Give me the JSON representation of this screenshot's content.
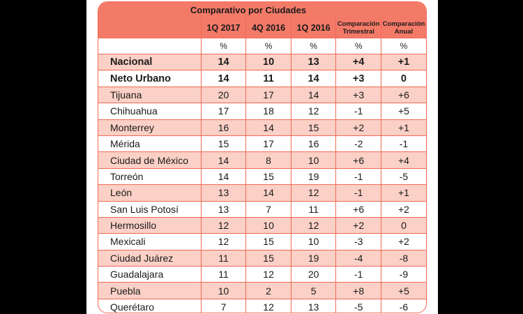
{
  "title": "Comparativo por Ciudades",
  "headers": [
    "",
    "1Q 2017",
    "4Q 2016",
    "1Q 2016",
    "Comparación Trimestral",
    "Comparación Anual"
  ],
  "units": [
    "",
    "%",
    "%",
    "%",
    "%",
    "%"
  ],
  "rows": [
    {
      "city": "Nacional",
      "q1_2017": "14",
      "q4_2016": "10",
      "q1_2016": "13",
      "trimestral": "+4",
      "anual": "+1"
    },
    {
      "city": "Neto Urbano",
      "q1_2017": "14",
      "q4_2016": "11",
      "q1_2016": "14",
      "trimestral": "+3",
      "anual": "0"
    },
    {
      "city": "Tijuana",
      "q1_2017": "20",
      "q4_2016": "17",
      "q1_2016": "14",
      "trimestral": "+3",
      "anual": "+6"
    },
    {
      "city": "Chihuahua",
      "q1_2017": "17",
      "q4_2016": "18",
      "q1_2016": "12",
      "trimestral": "-1",
      "anual": "+5"
    },
    {
      "city": "Monterrey",
      "q1_2017": "16",
      "q4_2016": "14",
      "q1_2016": "15",
      "trimestral": "+2",
      "anual": "+1"
    },
    {
      "city": "Mérida",
      "q1_2017": "15",
      "q4_2016": "17",
      "q1_2016": "16",
      "trimestral": "-2",
      "anual": "-1"
    },
    {
      "city": "Ciudad de México",
      "q1_2017": "14",
      "q4_2016": "8",
      "q1_2016": "10",
      "trimestral": "+6",
      "anual": "+4"
    },
    {
      "city": "Torreón",
      "q1_2017": "14",
      "q4_2016": "15",
      "q1_2016": "19",
      "trimestral": "-1",
      "anual": "-5"
    },
    {
      "city": "León",
      "q1_2017": "13",
      "q4_2016": "14",
      "q1_2016": "12",
      "trimestral": "-1",
      "anual": "+1"
    },
    {
      "city": "San Luis Potosí",
      "q1_2017": "13",
      "q4_2016": "7",
      "q1_2016": "11",
      "trimestral": "+6",
      "anual": "+2"
    },
    {
      "city": "Hermosillo",
      "q1_2017": "12",
      "q4_2016": "10",
      "q1_2016": "12",
      "trimestral": "+2",
      "anual": "0"
    },
    {
      "city": "Mexicali",
      "q1_2017": "12",
      "q4_2016": "15",
      "q1_2016": "10",
      "trimestral": "-3",
      "anual": "+2"
    },
    {
      "city": "Ciudad Juárez",
      "q1_2017": "11",
      "q4_2016": "15",
      "q1_2016": "19",
      "trimestral": "-4",
      "anual": "-8"
    },
    {
      "city": "Guadalajara",
      "q1_2017": "11",
      "q4_2016": "12",
      "q1_2016": "20",
      "trimestral": "-1",
      "anual": "-9"
    },
    {
      "city": "Puebla",
      "q1_2017": "10",
      "q4_2016": "2",
      "q1_2016": "5",
      "trimestral": "+8",
      "anual": "+5"
    },
    {
      "city": "Querétaro",
      "q1_2017": "7",
      "q4_2016": "12",
      "q1_2016": "13",
      "trimestral": "-5",
      "anual": "-6"
    }
  ],
  "colors": {
    "header": "#f47a68",
    "shade": "#fbd0c6",
    "border": "#f06a55"
  }
}
